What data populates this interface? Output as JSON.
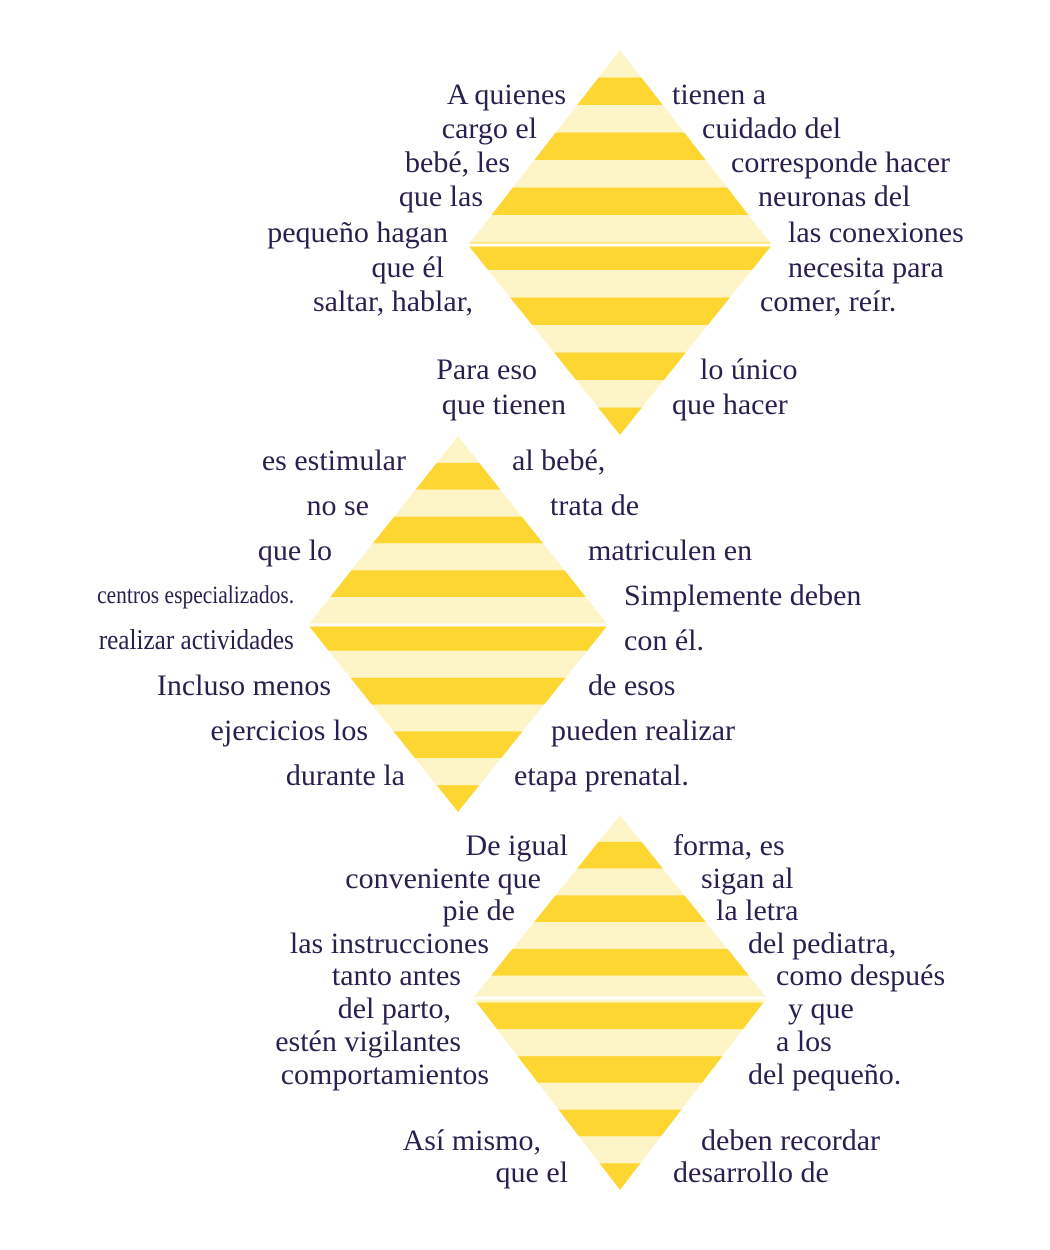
{
  "colors": {
    "stripe_dark": "#fdd632",
    "stripe_light": "#fdf5c8",
    "text": "#2a1f4e",
    "background": "#ffffff"
  },
  "blocks": [
    {
      "left": [
        "A quienes",
        "cargo el",
        "bebé, les",
        "que las",
        "pequeño hagan",
        "que él",
        "saltar, hablar,",
        "Para eso",
        "que tienen"
      ],
      "right": [
        "tienen a",
        "cuidado del",
        "corresponde hacer",
        "neuronas del",
        "las conexiones",
        "necesita para",
        "comer, reír.",
        "lo único",
        "que hacer"
      ]
    },
    {
      "left": [
        "es estimular",
        "no se",
        "que lo",
        "centros especializados.",
        "realizar actividades",
        "Incluso menos",
        "ejercicios los",
        "durante la"
      ],
      "right": [
        "al bebé,",
        "trata de",
        "matriculen en",
        "Simplemente deben",
        "con él.",
        "de esos",
        "pueden realizar",
        "etapa prenatal."
      ]
    },
    {
      "left": [
        "De igual",
        "conveniente que",
        "pie de",
        "las instrucciones",
        "tanto antes",
        "del parto,",
        "estén vigilantes",
        "comportamientos",
        "Así mismo,",
        "que el"
      ],
      "right": [
        "forma, es",
        "sigan al",
        "la letra",
        "del pediatra,",
        "como después",
        "y que",
        "a los",
        "del pequeño.",
        "deben recordar",
        "desarrollo de"
      ]
    }
  ]
}
